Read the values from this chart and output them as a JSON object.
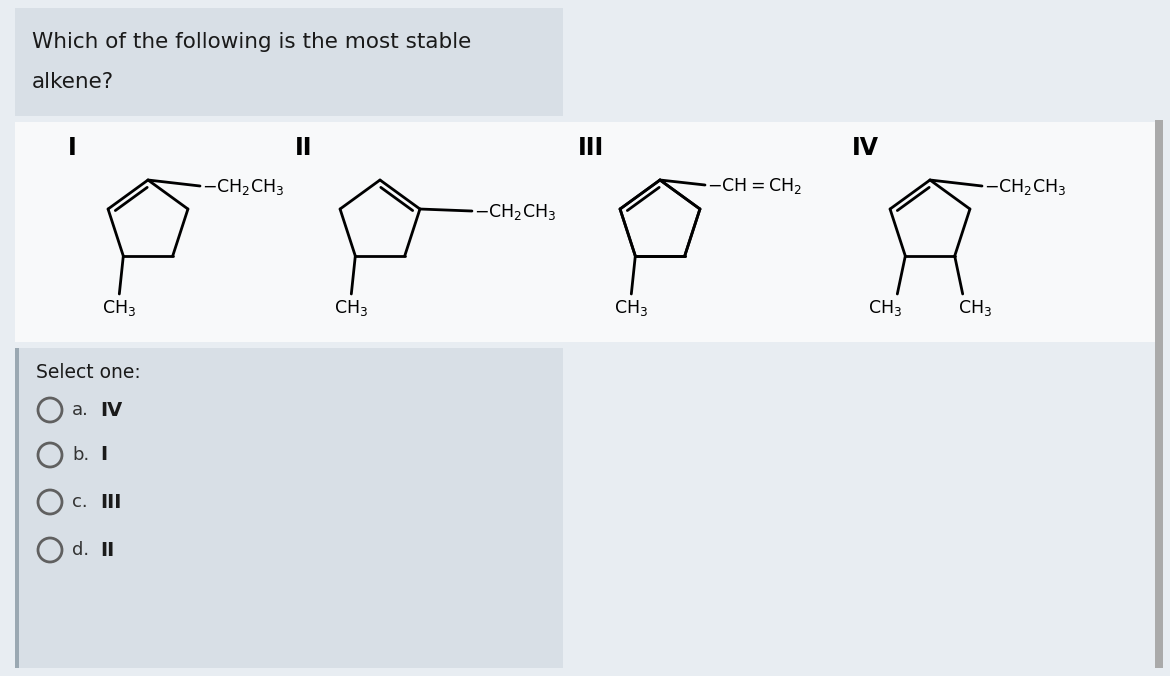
{
  "bg_outer": "#e8edf2",
  "bg_question": "#d8dfe6",
  "bg_select": "#d8dfe6",
  "bg_struct": "#f0f2f4",
  "text_color": "#1a1a1a",
  "select_one": "Select one:",
  "options": [
    {
      "label": "a.",
      "value": "IV"
    },
    {
      "label": "b.",
      "value": "I"
    },
    {
      "label": "c.",
      "value": "III"
    },
    {
      "label": "d.",
      "value": "II"
    }
  ],
  "figsize": [
    11.7,
    6.76
  ],
  "dpi": 100,
  "question_line1": "Which of the following is the most stable",
  "question_line2": "alkene?"
}
